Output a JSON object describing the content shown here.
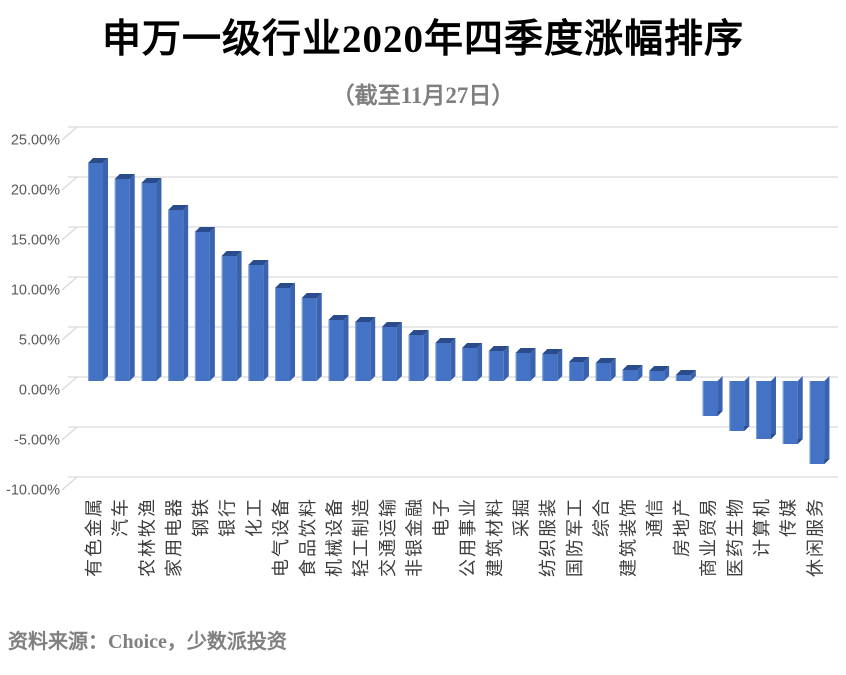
{
  "title": "申万一级行业2020年四季度涨幅排序",
  "subtitle": "（截至11月27日）",
  "source_note": "资料来源：Choice，少数派投资",
  "chart_data": {
    "type": "bar",
    "style": "3d-column",
    "title": "申万一级行业2020年四季度涨幅排序",
    "subtitle": "（截至11月27日）",
    "categories": [
      "有色金属",
      "汽车",
      "农林牧渔",
      "家用电器",
      "钢铁",
      "银行",
      "化工",
      "电气设备",
      "食品饮料",
      "机械设备",
      "轻工制造",
      "交通运输",
      "非银金融",
      "电子",
      "公用事业",
      "建筑材料",
      "采掘",
      "纺织服装",
      "国防军工",
      "综合",
      "建筑装饰",
      "通信",
      "房地产",
      "商业贸易",
      "医药生物",
      "计算机",
      "传媒",
      "休闲服务"
    ],
    "values": [
      21.8,
      20.2,
      19.8,
      17.1,
      14.9,
      12.5,
      11.6,
      9.3,
      8.3,
      6.1,
      5.9,
      5.4,
      4.6,
      3.8,
      3.3,
      3.0,
      2.8,
      2.7,
      1.9,
      1.8,
      1.1,
      1.0,
      0.6,
      -3.5,
      -5.0,
      -5.8,
      -6.3,
      -8.3
    ],
    "value_unit": "%",
    "xlabel": "",
    "ylabel": "",
    "ylim": [
      -10,
      25
    ],
    "ytick_step": 5,
    "ytick_labels": [
      "25.00%",
      "20.00%",
      "15.00%",
      "10.00%",
      "5.00%",
      "0.00%",
      "-5.00%",
      "-10.00%"
    ],
    "grid": true,
    "legend": "none",
    "colors": {
      "bar_front": "#4472C4",
      "bar_side": "#3A62AE",
      "bar_top": "#2B4C8C",
      "bar_edge_highlight": "#7FA2DC",
      "gridline": "#D9D9D9",
      "axis_tick_text": "#595959",
      "category_text": "#3D3D3D"
    }
  }
}
